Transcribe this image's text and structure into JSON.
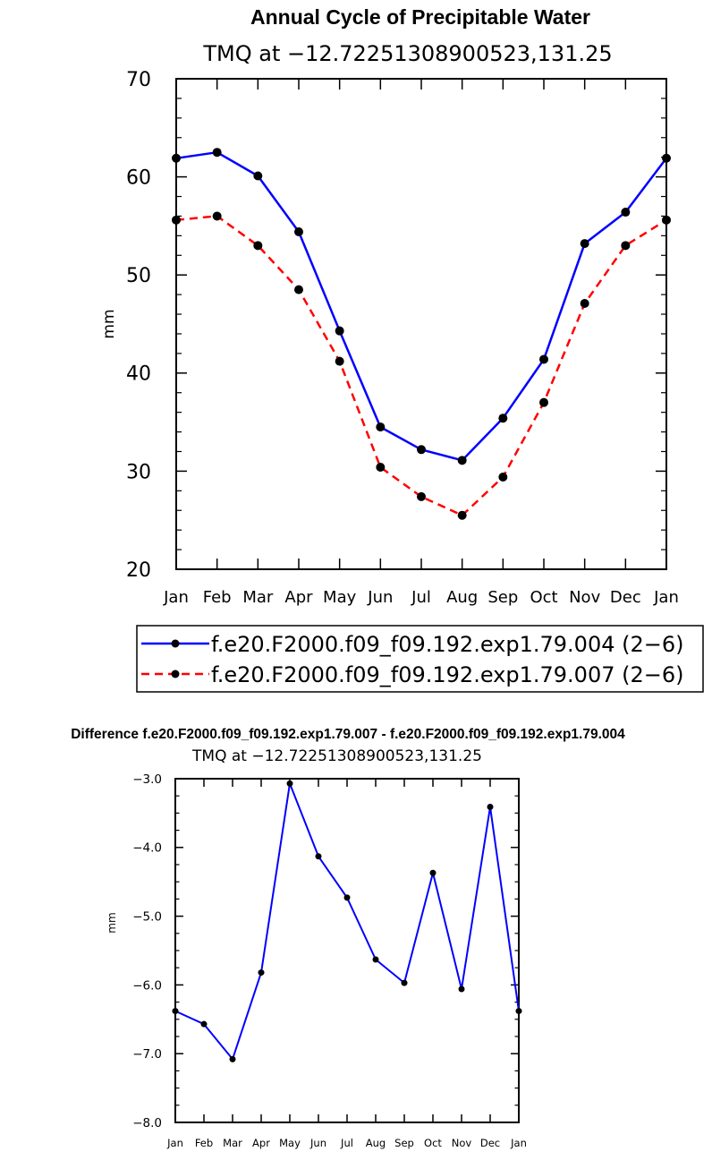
{
  "chart_data": [
    {
      "type": "line",
      "title": "Annual Cycle of Precipitable Water",
      "subtitle": "TMQ at −12.72251308900523,131.25",
      "xlabel": "",
      "ylabel": "mm",
      "ylim": [
        20,
        70
      ],
      "yticks": [
        "20",
        "30",
        "40",
        "50",
        "60",
        "70"
      ],
      "categories": [
        "Jan",
        "Feb",
        "Mar",
        "Apr",
        "May",
        "Jun",
        "Jul",
        "Aug",
        "Sep",
        "Oct",
        "Nov",
        "Dec",
        "Jan"
      ],
      "grid": false,
      "legend_position": "bottom",
      "series": [
        {
          "name": "f.e20.F2000.f09_f09.192.exp1.79.004 (2−6)",
          "color": "#0000ff",
          "dash": "solid",
          "values": [
            61.9,
            62.5,
            60.1,
            54.4,
            44.3,
            34.5,
            32.2,
            31.1,
            35.4,
            41.4,
            53.2,
            56.4,
            61.9
          ]
        },
        {
          "name": "f.e20.F2000.f09_f09.192.exp1.79.007 (2−6)",
          "color": "#ff0000",
          "dash": "dashed",
          "values": [
            55.6,
            56.0,
            53.0,
            48.5,
            41.2,
            30.4,
            27.4,
            25.5,
            29.4,
            37.0,
            47.1,
            53.0,
            55.6
          ]
        }
      ]
    },
    {
      "type": "line",
      "title": "Difference f.e20.F2000.f09_f09.192.exp1.79.007 - f.e20.F2000.f09_f09.192.exp1.79.004",
      "subtitle": "TMQ at −12.72251308900523,131.25",
      "xlabel": "",
      "ylabel": "mm",
      "ylim": [
        -8,
        -3
      ],
      "yticks": [
        "−8.0",
        "−7.0",
        "−6.0",
        "−5.0",
        "−4.0",
        "−3.0"
      ],
      "categories": [
        "Jan",
        "Feb",
        "Mar",
        "Apr",
        "May",
        "Jun",
        "Jul",
        "Aug",
        "Sep",
        "Oct",
        "Nov",
        "Dec",
        "Jan"
      ],
      "grid": false,
      "series": [
        {
          "name": "difference",
          "color": "#0000ff",
          "dash": "solid",
          "values": [
            -6.38,
            -6.57,
            -7.08,
            -5.82,
            -3.07,
            -4.13,
            -4.73,
            -5.63,
            -5.97,
            -4.37,
            -6.06,
            -3.41,
            -6.38
          ]
        }
      ]
    }
  ]
}
